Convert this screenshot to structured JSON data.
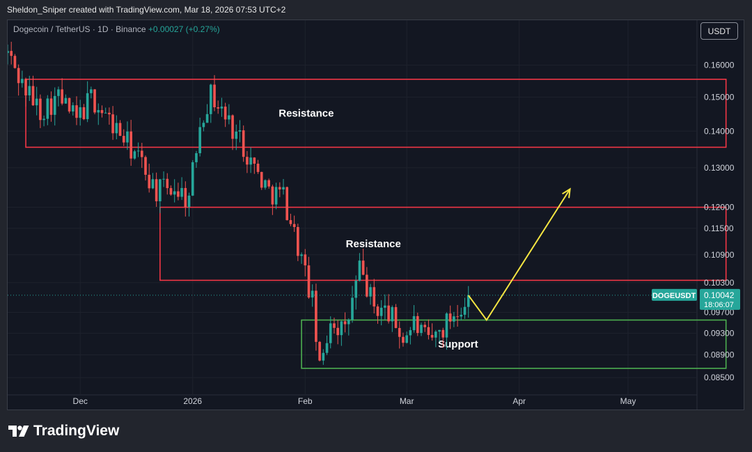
{
  "header": {
    "attribution": "Sheldon_Sniper created with TradingView.com, Mar 18, 2026 07:53 UTC+2"
  },
  "legend": {
    "symbol": "Dogecoin / TetherUS · 1D · Binance",
    "change": "+0.00027 (+0.27%)"
  },
  "currency_button": "USDT",
  "footer": {
    "brand": "TradingView"
  },
  "colors": {
    "up": "#26a69a",
    "down": "#ef5350",
    "resistance": "#f23645",
    "support": "#4caf50",
    "arrow": "#f5e642",
    "price_tag": "#26a69a"
  },
  "chart_data": {
    "type": "candlestick",
    "title": "",
    "xlabel": "",
    "ylabel": "",
    "y_scale": "log",
    "ylim": [
      0.083,
      0.168
    ],
    "y_ticks": [
      "0.16000",
      "0.15000",
      "0.14000",
      "0.13000",
      "0.12000",
      "0.11500",
      "0.10900",
      "0.10300",
      "0.09700",
      "0.09300",
      "0.08900",
      "0.08500"
    ],
    "x_ticks": [
      "Dec",
      "2026",
      "Feb",
      "Mar",
      "Apr",
      "May"
    ],
    "x_range": [
      "2025-11-11",
      "2026-05-20"
    ],
    "x_tick_dates": [
      "2025-12-01",
      "2026-01-01",
      "2026-02-01",
      "2026-03-01",
      "2026-04-01",
      "2026-05-01"
    ],
    "current_price": {
      "symbol": "DOGEUSDT",
      "value": "0.10042",
      "countdown": "18:06:07"
    },
    "zones": [
      {
        "label": "Resistance",
        "kind": "resistance",
        "low": 0.1355,
        "high": 0.1555,
        "start": "2025-11-16",
        "end": "2026-05-28"
      },
      {
        "label": "Resistance",
        "kind": "resistance",
        "low": 0.1035,
        "high": 0.12,
        "start": "2025-12-23",
        "end": "2026-05-28"
      },
      {
        "label": "Support",
        "kind": "support",
        "low": 0.0866,
        "high": 0.0955,
        "start": "2026-01-31",
        "end": "2026-05-28"
      }
    ],
    "projection": [
      {
        "date": "2026-03-18",
        "price": 0.1004
      },
      {
        "date": "2026-03-23",
        "price": 0.0955
      },
      {
        "date": "2026-04-15",
        "price": 0.1245
      }
    ],
    "trend": [
      [
        "2025-11-11",
        0.164
      ],
      [
        "2025-11-15",
        0.154
      ],
      [
        "2025-11-20",
        0.146
      ],
      [
        "2025-11-25",
        0.15
      ],
      [
        "2025-11-30",
        0.143
      ],
      [
        "2025-12-04",
        0.15
      ],
      [
        "2025-12-09",
        0.143
      ],
      [
        "2025-12-13",
        0.138
      ],
      [
        "2025-12-18",
        0.131
      ],
      [
        "2025-12-22",
        0.124
      ],
      [
        "2025-12-27",
        0.125
      ],
      [
        "2025-12-31",
        0.122
      ],
      [
        "2026-01-03",
        0.143
      ],
      [
        "2026-01-06",
        0.151
      ],
      [
        "2026-01-10",
        0.144
      ],
      [
        "2026-01-14",
        0.138
      ],
      [
        "2026-01-18",
        0.13
      ],
      [
        "2026-01-22",
        0.124
      ],
      [
        "2026-01-26",
        0.123
      ],
      [
        "2026-01-30",
        0.111
      ],
      [
        "2026-02-03",
        0.099
      ],
      [
        "2026-02-05",
        0.086
      ],
      [
        "2026-02-08",
        0.096
      ],
      [
        "2026-02-12",
        0.093
      ],
      [
        "2026-02-16",
        0.106
      ],
      [
        "2026-02-20",
        0.098
      ],
      [
        "2026-02-24",
        0.097
      ],
      [
        "2026-02-28",
        0.092
      ],
      [
        "2026-03-03",
        0.095
      ],
      [
        "2026-03-07",
        0.091
      ],
      [
        "2026-03-11",
        0.094
      ],
      [
        "2026-03-15",
        0.098
      ],
      [
        "2026-03-18",
        0.1004
      ]
    ]
  }
}
